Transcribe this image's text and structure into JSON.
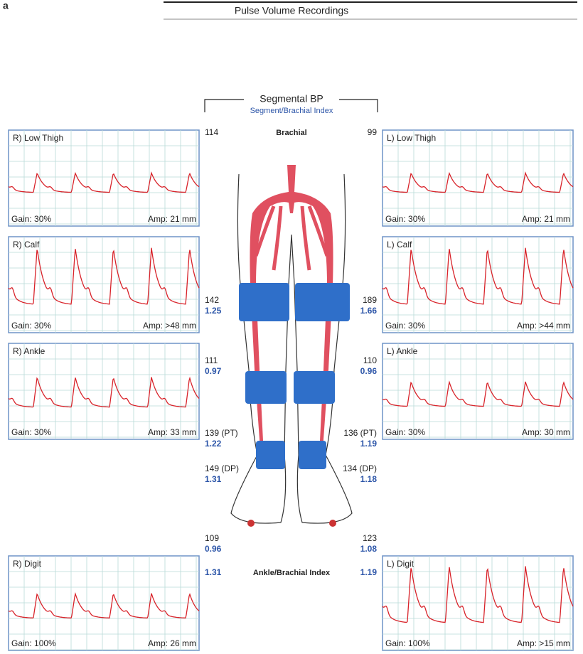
{
  "panel_label": "a",
  "header": {
    "title": "Pulse Volume Recordings"
  },
  "segmental": {
    "title": "Segmental BP",
    "subtitle": "Segment/Brachial Index",
    "brachial_label": "Brachial",
    "abi_label": "Ankle/Brachial Index"
  },
  "waveforms": {
    "right": [
      {
        "label": "R) Low Thigh",
        "gain": "Gain: 30%",
        "amp": "Amp: 21 mm"
      },
      {
        "label": "R) Calf",
        "gain": "Gain: 30%",
        "amp": "Amp: >48 mm"
      },
      {
        "label": "R) Ankle",
        "gain": "Gain: 30%",
        "amp": "Amp: 33 mm"
      },
      {
        "label": "R) Digit",
        "gain": "Gain: 100%",
        "amp": "Amp: 26 mm"
      }
    ],
    "left": [
      {
        "label": "L) Low Thigh",
        "gain": "Gain: 30%",
        "amp": "Amp: 21 mm"
      },
      {
        "label": "L) Calf",
        "gain": "Gain: 30%",
        "amp": "Amp: >44 mm"
      },
      {
        "label": "L) Ankle",
        "gain": "Gain: 30%",
        "amp": "Amp: 30 mm"
      },
      {
        "label": "L) Digit",
        "gain": "Gain: 100%",
        "amp": "Amp: >15 mm"
      }
    ]
  },
  "readings": {
    "right": [
      {
        "pressure": "114"
      },
      {
        "pressure": "142",
        "index": "1.25"
      },
      {
        "pressure": "111",
        "index": "0.97"
      },
      {
        "pressure": "139 (PT)",
        "index": "1.22"
      },
      {
        "pressure": "149 (DP)",
        "index": "1.31"
      },
      {
        "pressure": "109",
        "index": "0.96"
      }
    ],
    "left": [
      {
        "pressure": "99"
      },
      {
        "pressure": "189",
        "index": "1.66"
      },
      {
        "pressure": "110",
        "index": "0.96"
      },
      {
        "pressure": "136 (PT)",
        "index": "1.19"
      },
      {
        "pressure": "134 (DP)",
        "index": "1.18"
      },
      {
        "pressure": "123",
        "index": "1.08"
      }
    ],
    "right_abi": "1.31",
    "left_abi": "1.19"
  }
}
